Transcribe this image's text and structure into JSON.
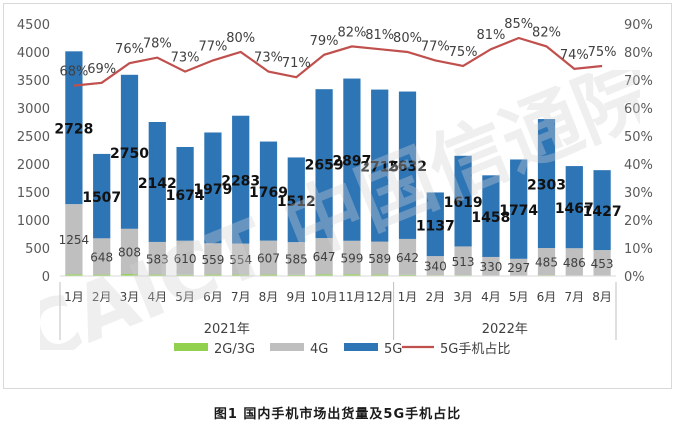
{
  "caption": "图1  国内手机市场出货量及5G手机占比",
  "watermark": "CAICT 中国信通院",
  "chart_data": {
    "type": "bar",
    "stacked": true,
    "categories": [
      "1月",
      "2月",
      "3月",
      "4月",
      "5月",
      "6月",
      "7月",
      "8月",
      "9月",
      "10月",
      "11月",
      "12月",
      "1月",
      "2月",
      "3月",
      "4月",
      "5月",
      "6月",
      "7月",
      "8月"
    ],
    "groups": [
      {
        "label": "2021年",
        "count": 12
      },
      {
        "label": "2022年",
        "count": 8
      }
    ],
    "series": [
      {
        "name": "2G/3G",
        "color": "#92d050",
        "values": [
          30,
          25,
          35,
          25,
          20,
          25,
          25,
          25,
          20,
          30,
          30,
          25,
          20,
          15,
          15,
          10,
          10,
          15,
          10,
          10
        ],
        "labeled": false
      },
      {
        "name": "4G",
        "color": "#bfbfbf",
        "values": [
          1254,
          648,
          808,
          583,
          610,
          559,
          554,
          607,
          585,
          647,
          599,
          589,
          642,
          340,
          513,
          330,
          297,
          485,
          486,
          453
        ],
        "labeled": true
      },
      {
        "name": "5G",
        "color": "#2e75b6",
        "values": [
          2728,
          1507,
          2750,
          2142,
          1674,
          1979,
          2283,
          1769,
          1512,
          2659,
          2897,
          2715,
          2632,
          1137,
          1619,
          1458,
          1774,
          2303,
          1467,
          1427
        ],
        "labeled": true
      }
    ],
    "line": {
      "name": "5G手机占比",
      "color": "#c0504d",
      "axis": "right",
      "values": [
        68,
        69,
        76,
        78,
        73,
        77,
        80,
        73,
        71,
        79,
        82,
        81,
        80,
        77,
        75,
        81,
        85,
        82,
        74,
        75
      ],
      "labels": [
        "68%",
        "69%",
        "76%",
        "78%",
        "73%",
        "77%",
        "80%",
        "73%",
        "71%",
        "79%",
        "82%",
        "81%",
        "80%",
        "77%",
        "75%",
        "81%",
        "85%",
        "82%",
        "74%",
        "75%"
      ]
    },
    "y_left": {
      "min": 0,
      "max": 4500,
      "step": 500,
      "ticks": [
        "0",
        "500",
        "1000",
        "1500",
        "2000",
        "2500",
        "3000",
        "3500",
        "4000",
        "4500"
      ]
    },
    "y_right": {
      "min": 0,
      "max": 90,
      "step": 10,
      "ticks": [
        "0%",
        "10%",
        "20%",
        "30%",
        "40%",
        "50%",
        "60%",
        "70%",
        "80%",
        "90%"
      ]
    },
    "legend": {
      "placement": "bottom",
      "items": [
        "2G/3G",
        "4G",
        "5G",
        "5G手机占比"
      ]
    },
    "grid": false
  }
}
